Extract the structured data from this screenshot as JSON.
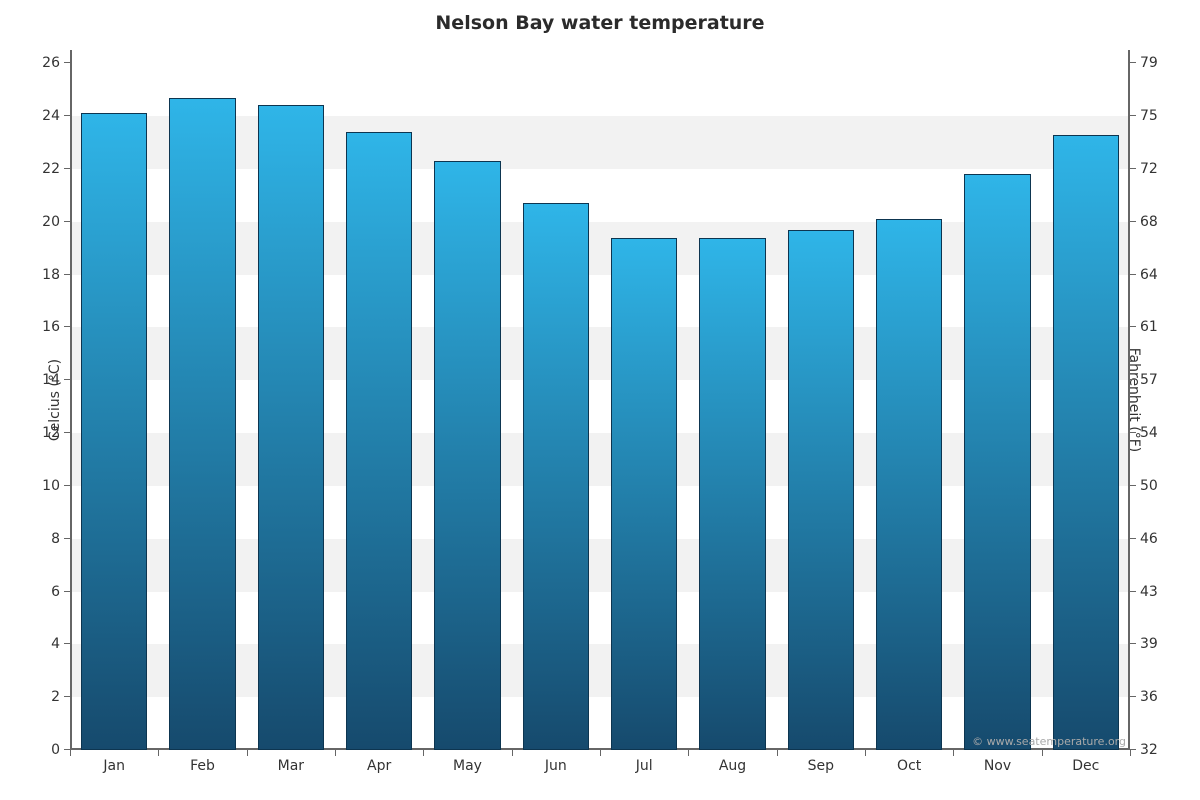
{
  "chart": {
    "type": "bar",
    "title": "Nelson Bay water temperature",
    "title_fontsize": 19,
    "title_color": "#2b2b2b",
    "background_color": "#ffffff",
    "grid_band_color": "#f2f2f2",
    "axis_color": "#666666",
    "tick_label_color": "#333333",
    "tick_label_fontsize": 14,
    "axis_label_fontsize": 14,
    "axis_label_color": "#333333",
    "bar_gradient_top": "#2fb5e8",
    "bar_gradient_bottom": "#164a6d",
    "bar_border_color": "#0d3550",
    "bar_width_ratio": 0.75,
    "categories": [
      "Jan",
      "Feb",
      "Mar",
      "Apr",
      "May",
      "Jun",
      "Jul",
      "Aug",
      "Sep",
      "Oct",
      "Nov",
      "Dec"
    ],
    "values_celsius": [
      24.1,
      24.7,
      24.4,
      23.4,
      22.3,
      20.7,
      19.4,
      19.4,
      19.7,
      20.1,
      21.8,
      23.3
    ],
    "left_axis": {
      "label": "Celcius (°C)",
      "min": 0,
      "max": 26.5,
      "tick_step": 2,
      "ticks": [
        0,
        2,
        4,
        6,
        8,
        10,
        12,
        14,
        16,
        18,
        20,
        22,
        24,
        26
      ]
    },
    "right_axis": {
      "label": "Fahrenheit (°F)",
      "ticks": [
        32,
        36,
        39,
        43,
        46,
        50,
        54,
        57,
        61,
        64,
        68,
        72,
        75,
        79
      ]
    },
    "credit": "© www.seatemperature.org"
  }
}
